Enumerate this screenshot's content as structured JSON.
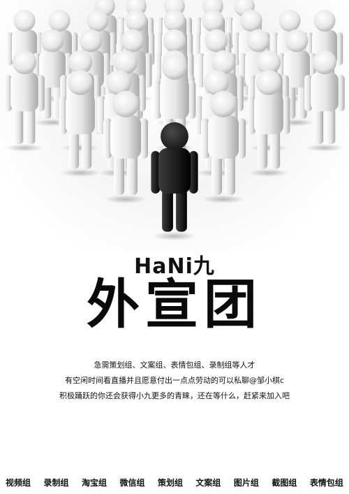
{
  "poster": {
    "brand": "HaNi九",
    "title": "外宣团",
    "lines": [
      "急需策划组、文案组、表情包组、录制组等人才",
      "有空闲时间看直播并且愿意付出一点点劳动的可以私聊@邹小棋c",
      "积极踊跃的你还会获得小九更多的青睐，还在等什么，赶紧来加入吧"
    ]
  },
  "groups": [
    "视频组",
    "录制组",
    "淘宝组",
    "微信组",
    "策划组",
    "文案组",
    "图片组",
    "截图组",
    "表情包组"
  ],
  "colors": {
    "leader": "#1a1a1a",
    "crowd": "#e6e6e6",
    "text": "#111111"
  }
}
